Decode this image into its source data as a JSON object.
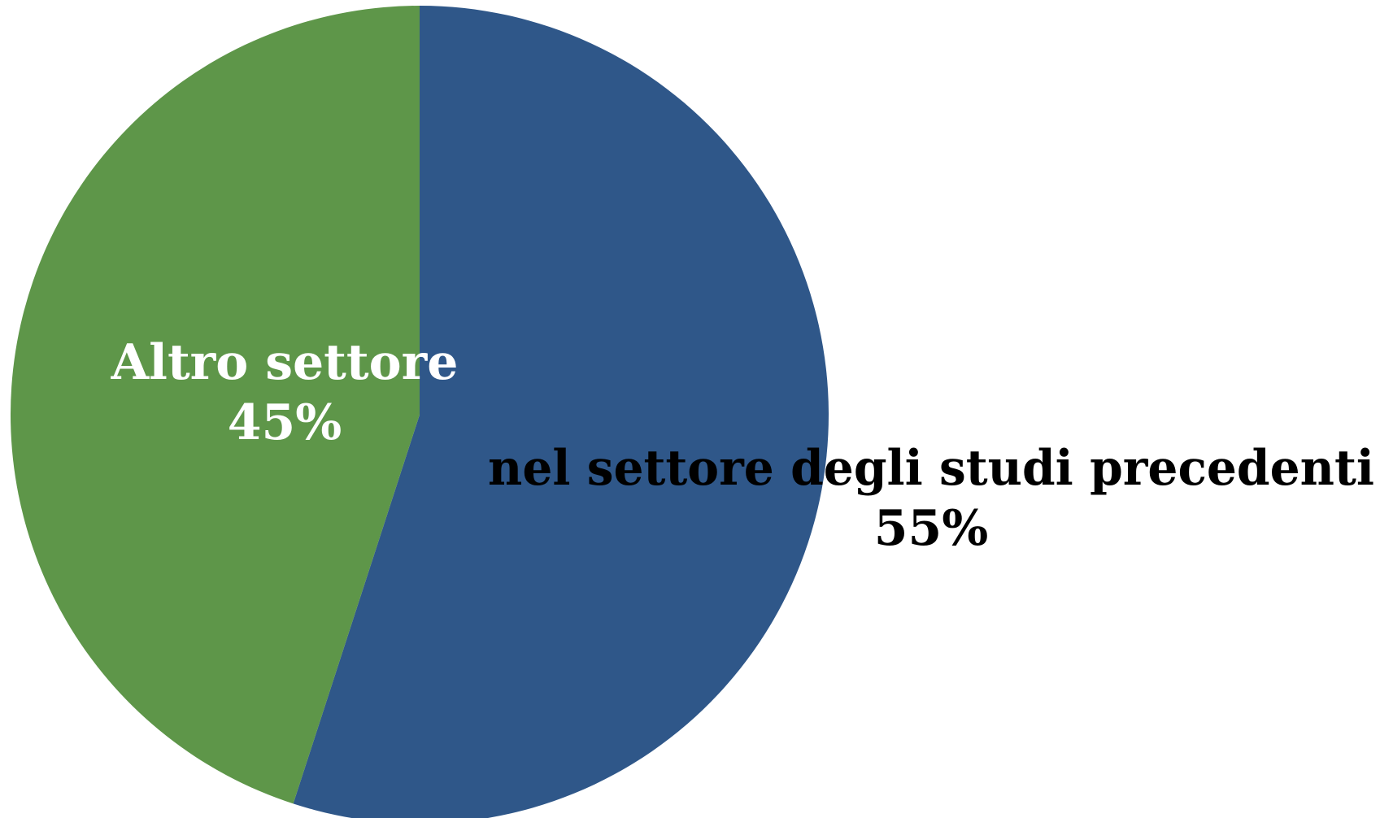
{
  "chart_data": {
    "type": "pie",
    "title": "",
    "categories": [
      "nel settore degli studi precedenti",
      "Altro settore"
    ],
    "values": [
      55,
      45
    ],
    "value_labels": [
      "55%",
      "45%"
    ],
    "colors": [
      "#2F5789",
      "#5E9649"
    ],
    "label_colors": [
      "#000000",
      "#FFFFFF"
    ],
    "start": "12 o'clock",
    "direction": "clockwise",
    "legend": "none"
  }
}
